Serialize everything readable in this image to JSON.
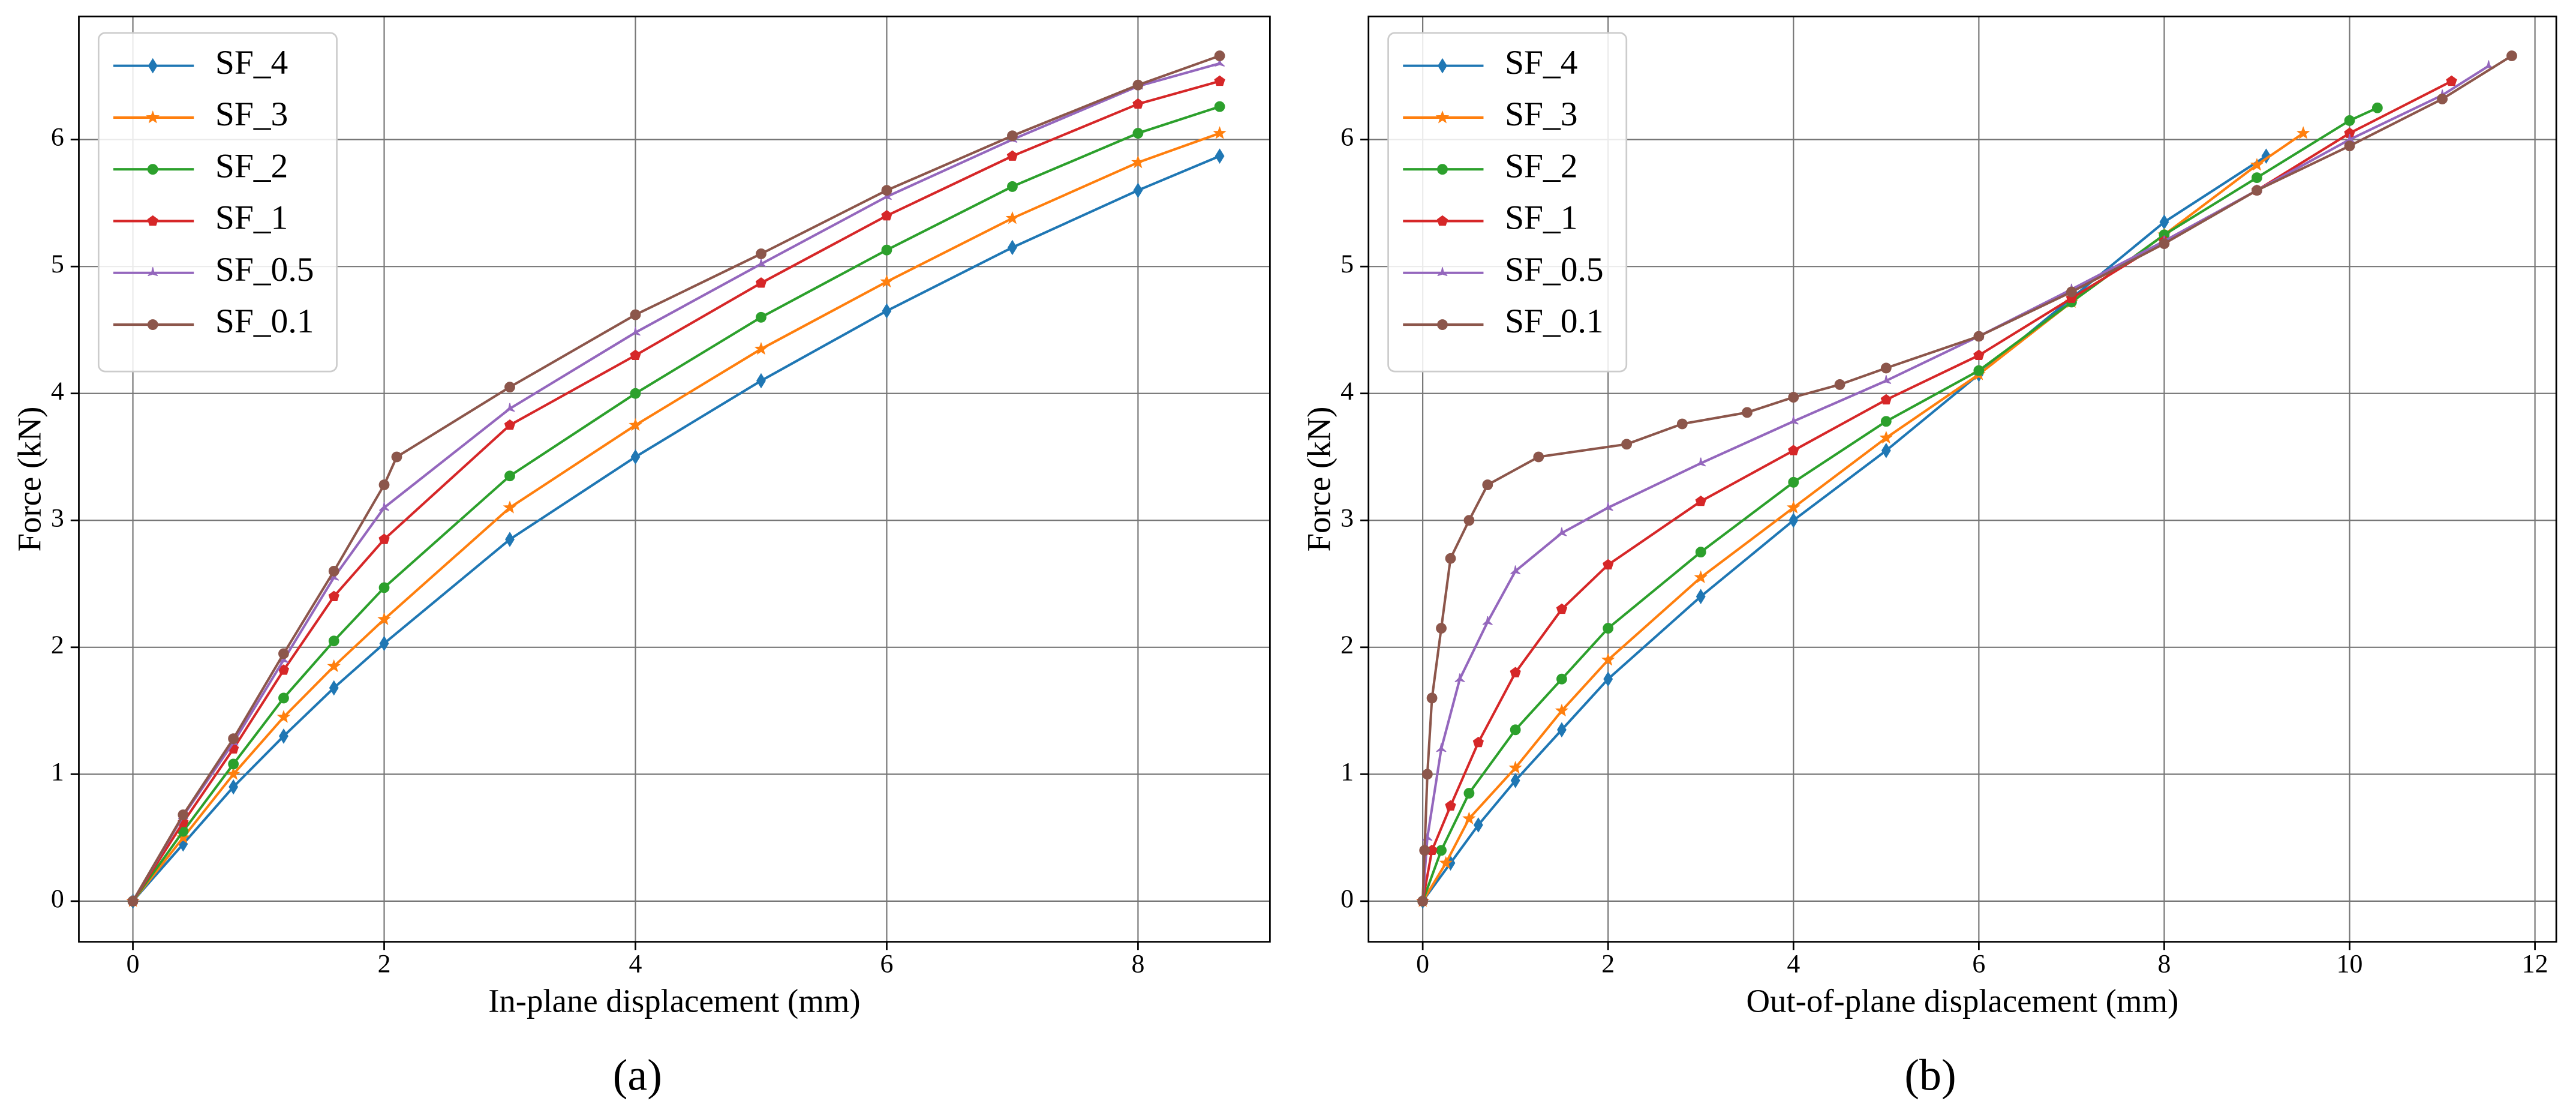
{
  "chart_data": [
    {
      "type": "line",
      "caption": "(a)",
      "xlabel": "In-plane displacement (mm)",
      "ylabel": "Force (kN)",
      "xlim": [
        -0.43,
        9.05
      ],
      "ylim": [
        -0.32,
        6.97
      ],
      "xticks": [
        0,
        2,
        4,
        6,
        8
      ],
      "yticks": [
        0,
        1,
        2,
        3,
        4,
        5,
        6
      ],
      "grid": true,
      "legend": "upper left",
      "series": [
        {
          "name": "SF_4",
          "color": "#1f77b4",
          "marker": "diamond",
          "x": [
            0,
            0.4,
            0.8,
            1.2,
            1.6,
            2,
            3,
            4,
            5,
            6,
            7,
            8,
            8.65
          ],
          "values": [
            0,
            0.45,
            0.9,
            1.3,
            1.68,
            2.03,
            2.85,
            3.5,
            4.1,
            4.65,
            5.15,
            5.6,
            5.87
          ]
        },
        {
          "name": "SF_3",
          "color": "#ff7f0e",
          "marker": "star",
          "x": [
            0,
            0.4,
            0.8,
            1.2,
            1.6,
            2,
            3,
            4,
            5,
            6,
            7,
            8,
            8.65
          ],
          "values": [
            0,
            0.5,
            1.0,
            1.45,
            1.85,
            2.22,
            3.1,
            3.75,
            4.35,
            4.88,
            5.38,
            5.82,
            6.05
          ]
        },
        {
          "name": "SF_2",
          "color": "#2ca02c",
          "marker": "circle",
          "x": [
            0,
            0.4,
            0.8,
            1.2,
            1.6,
            2,
            3,
            4,
            5,
            6,
            7,
            8,
            8.65
          ],
          "values": [
            0,
            0.55,
            1.08,
            1.6,
            2.05,
            2.47,
            3.35,
            4.0,
            4.6,
            5.13,
            5.63,
            6.05,
            6.26
          ]
        },
        {
          "name": "SF_1",
          "color": "#d62728",
          "marker": "pentagon",
          "x": [
            0,
            0.4,
            0.8,
            1.2,
            1.6,
            2,
            3,
            4,
            5,
            6,
            7,
            8,
            8.65
          ],
          "values": [
            0,
            0.62,
            1.2,
            1.82,
            2.4,
            2.85,
            3.75,
            4.3,
            4.87,
            5.4,
            5.87,
            6.28,
            6.46
          ]
        },
        {
          "name": "SF_0.5",
          "color": "#9467bd",
          "marker": "tri",
          "x": [
            0,
            0.4,
            0.8,
            1.2,
            1.6,
            2,
            3,
            4,
            5,
            6,
            7,
            8,
            8.65
          ],
          "values": [
            0,
            0.67,
            1.25,
            1.9,
            2.55,
            3.1,
            3.88,
            4.48,
            5.02,
            5.55,
            6.0,
            6.42,
            6.6
          ]
        },
        {
          "name": "SF_0.1",
          "color": "#8c564b",
          "marker": "circle",
          "x": [
            0,
            0.4,
            0.8,
            1.2,
            1.6,
            2,
            2.1,
            3,
            4,
            5,
            6,
            7,
            8,
            8.65
          ],
          "values": [
            0,
            0.68,
            1.28,
            1.95,
            2.6,
            3.28,
            3.5,
            4.05,
            4.62,
            5.1,
            5.6,
            6.03,
            6.43,
            6.66
          ]
        }
      ]
    },
    {
      "type": "line",
      "caption": "(b)",
      "xlabel": "Out-of-plane displacement (mm)",
      "ylabel": "Force (kN)",
      "xlim": [
        -0.585,
        12.23
      ],
      "ylim": [
        -0.32,
        6.97
      ],
      "xticks": [
        0,
        2,
        4,
        6,
        8,
        10,
        12
      ],
      "yticks": [
        0,
        1,
        2,
        3,
        4,
        5,
        6
      ],
      "grid": true,
      "legend": "upper left",
      "series": [
        {
          "name": "SF_4",
          "color": "#1f77b4",
          "marker": "diamond",
          "x": [
            0,
            0.3,
            0.6,
            1,
            1.5,
            2,
            3,
            4,
            5,
            6,
            7,
            8,
            9.1
          ],
          "values": [
            0,
            0.3,
            0.6,
            0.95,
            1.35,
            1.75,
            2.4,
            3.0,
            3.55,
            4.15,
            4.75,
            5.35,
            5.87
          ]
        },
        {
          "name": "SF_3",
          "color": "#ff7f0e",
          "marker": "star",
          "x": [
            0,
            0.25,
            0.5,
            1,
            1.5,
            2,
            3,
            4,
            5,
            6,
            7,
            8,
            9,
            9.5
          ],
          "values": [
            0,
            0.3,
            0.65,
            1.05,
            1.5,
            1.9,
            2.55,
            3.1,
            3.65,
            4.15,
            4.72,
            5.25,
            5.8,
            6.05
          ]
        },
        {
          "name": "SF_2",
          "color": "#2ca02c",
          "marker": "circle",
          "x": [
            0,
            0.2,
            0.5,
            1,
            1.5,
            2,
            3,
            4,
            5,
            6,
            7,
            8,
            9,
            10,
            10.3
          ],
          "values": [
            0,
            0.4,
            0.85,
            1.35,
            1.75,
            2.15,
            2.75,
            3.3,
            3.78,
            4.18,
            4.72,
            5.25,
            5.7,
            6.15,
            6.25
          ]
        },
        {
          "name": "SF_1",
          "color": "#d62728",
          "marker": "pentagon",
          "x": [
            0,
            0.1,
            0.3,
            0.6,
            1,
            1.5,
            2,
            3,
            4,
            5,
            6,
            7,
            8,
            9,
            10,
            11.1
          ],
          "values": [
            0,
            0.4,
            0.75,
            1.25,
            1.8,
            2.3,
            2.65,
            3.15,
            3.55,
            3.95,
            4.3,
            4.75,
            5.2,
            5.6,
            6.05,
            6.46
          ]
        },
        {
          "name": "SF_0.5",
          "color": "#9467bd",
          "marker": "tri",
          "x": [
            0,
            0.05,
            0.2,
            0.4,
            0.7,
            1,
            1.5,
            2,
            3,
            4,
            5,
            6,
            7,
            8,
            9,
            10,
            11,
            11.5
          ],
          "values": [
            0,
            0.5,
            1.2,
            1.75,
            2.2,
            2.6,
            2.9,
            3.1,
            3.45,
            3.78,
            4.1,
            4.45,
            4.82,
            5.2,
            5.6,
            6.0,
            6.35,
            6.58
          ]
        },
        {
          "name": "SF_0.1",
          "color": "#8c564b",
          "marker": "circle",
          "x": [
            0,
            0.02,
            0.05,
            0.1,
            0.2,
            0.3,
            0.5,
            0.7,
            1.25,
            2.2,
            2.8,
            3.5,
            4,
            4.5,
            5,
            6,
            7,
            8,
            9,
            10,
            11,
            11.75
          ],
          "values": [
            0,
            0.4,
            1.0,
            1.6,
            2.15,
            2.7,
            3.0,
            3.28,
            3.5,
            3.6,
            3.76,
            3.85,
            3.97,
            4.07,
            4.2,
            4.45,
            4.8,
            5.18,
            5.6,
            5.95,
            6.32,
            6.66
          ]
        }
      ]
    }
  ]
}
